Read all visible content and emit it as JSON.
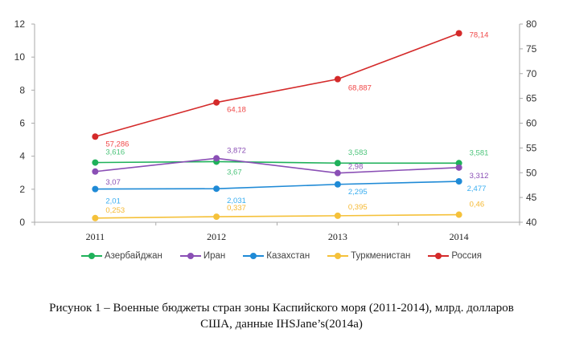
{
  "chart_data": {
    "type": "line",
    "categories": [
      "2011",
      "2012",
      "2013",
      "2014"
    ],
    "y_left": {
      "range": [
        0,
        12
      ],
      "ticks": [
        "0",
        "2",
        "4",
        "6",
        "8",
        "10",
        "12"
      ]
    },
    "y_right": {
      "range": [
        40,
        80
      ],
      "ticks": [
        "40",
        "45",
        "50",
        "55",
        "60",
        "65",
        "70",
        "75",
        "80"
      ]
    },
    "grid": false,
    "legend_placement": "bottom",
    "series": [
      {
        "name": "Азербайджан",
        "color": "#1fb15a",
        "label_color": "#4cc47a",
        "axis": "left",
        "values": [
          3.616,
          3.67,
          3.583,
          3.581
        ],
        "labels": [
          "3,616",
          "3,67",
          "3,583",
          "3,581"
        ]
      },
      {
        "name": "Иран",
        "color": "#8a4fb5",
        "label_color": "#8a4fb5",
        "axis": "left",
        "values": [
          3.07,
          3.872,
          2.98,
          3.312
        ],
        "labels": [
          "3,07",
          "3,872",
          "2,98",
          "3,312"
        ]
      },
      {
        "name": "Казахстан",
        "color": "#1f8ad6",
        "label_color": "#3aaef0",
        "axis": "left",
        "values": [
          2.01,
          2.031,
          2.295,
          2.477
        ],
        "labels": [
          "2,01",
          "2,031",
          "2,295",
          "2,477"
        ]
      },
      {
        "name": "Туркменистан",
        "color": "#f5c13a",
        "label_color": "#f5b830",
        "axis": "left",
        "values": [
          0.253,
          0.337,
          0.395,
          0.46
        ],
        "labels": [
          "0,253",
          "0,337",
          "0,395",
          "0,46"
        ]
      },
      {
        "name": "Россия",
        "color": "#d42a2a",
        "label_color": "#f04848",
        "axis": "right",
        "values": [
          57.286,
          64.18,
          68.887,
          78.14
        ],
        "labels": [
          "57,286",
          "64,18",
          "68,887",
          "78,14"
        ]
      }
    ]
  },
  "caption": {
    "line1": "Рисунок 1 – Военные бюджеты стран зоны Каспийского моря (2011-2014), млрд. долларов",
    "line2": "США, данные IHSJane’s(2014a)"
  }
}
